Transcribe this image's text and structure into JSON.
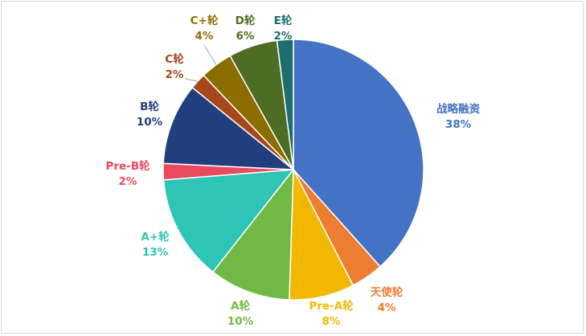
{
  "chart_data": {
    "type": "pie",
    "title": "",
    "start_angle_deg": 0,
    "direction": "clockwise",
    "slices": [
      {
        "label": "战略融资",
        "value": 38,
        "value_label": "38%",
        "color": "#4472c4"
      },
      {
        "label": "天使轮",
        "value": 4,
        "value_label": "4%",
        "color": "#ed7d31"
      },
      {
        "label": "Pre-A轮",
        "value": 8,
        "value_label": "8%",
        "color": "#f2b800"
      },
      {
        "label": "A轮",
        "value": 10,
        "value_label": "10%",
        "color": "#70b944"
      },
      {
        "label": "A+轮",
        "value": 13,
        "value_label": "13%",
        "color": "#2ec4b6"
      },
      {
        "label": "Pre-B轮",
        "value": 2,
        "value_label": "2%",
        "color": "#e84a5f"
      },
      {
        "label": "B轮",
        "value": 10,
        "value_label": "10%",
        "color": "#213f7e"
      },
      {
        "label": "C轮",
        "value": 2,
        "value_label": "2%",
        "color": "#a5461b"
      },
      {
        "label": "C+轮",
        "value": 4,
        "value_label": "4%",
        "color": "#8b6d00"
      },
      {
        "label": "D轮",
        "value": 6,
        "value_label": "6%",
        "color": "#4d6d24"
      },
      {
        "label": "E轮",
        "value": 2,
        "value_label": "2%",
        "color": "#1f6e6e"
      }
    ]
  }
}
